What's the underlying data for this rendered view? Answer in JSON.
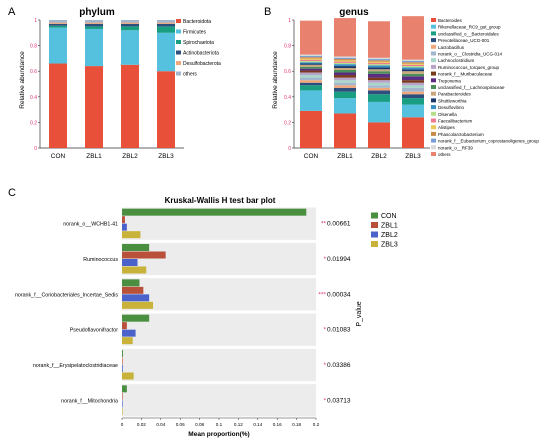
{
  "chart_data": [
    {
      "type": "bar",
      "stacked": true,
      "panel_label": "A",
      "title": "phylum",
      "ylabel": "Relative abundance",
      "ylim": [
        0,
        1
      ],
      "yticks": [
        0,
        0.2,
        0.4,
        0.6,
        0.8,
        1
      ],
      "categories": [
        "CON",
        "ZBL1",
        "ZBL2",
        "ZBL3"
      ],
      "legend_position": "right",
      "series": [
        {
          "name": "Bacteroidota",
          "color": "#e8503a",
          "values": [
            0.66,
            0.64,
            0.65,
            0.6
          ]
        },
        {
          "name": "Firmicutes",
          "color": "#56c1de",
          "values": [
            0.28,
            0.29,
            0.27,
            0.3
          ]
        },
        {
          "name": "Spirochaetota",
          "color": "#1a9e82",
          "values": [
            0.015,
            0.02,
            0.03,
            0.05
          ]
        },
        {
          "name": "Actinobacteriota",
          "color": "#2e4f7e",
          "values": [
            0.015,
            0.02,
            0.02,
            0.02
          ]
        },
        {
          "name": "Desulfobacterota",
          "color": "#f0a87a",
          "values": [
            0.01,
            0.01,
            0.01,
            0.01
          ]
        },
        {
          "name": "others",
          "color": "#a2b7ce",
          "values": [
            0.02,
            0.02,
            0.02,
            0.02
          ]
        }
      ]
    },
    {
      "type": "bar",
      "stacked": true,
      "panel_label": "B",
      "title": "genus",
      "ylabel": "Relative abundance",
      "ylim": [
        0,
        1
      ],
      "yticks": [
        0,
        0.2,
        0.4,
        0.6,
        0.8,
        1
      ],
      "categories": [
        "CON",
        "ZBL1",
        "ZBL2",
        "ZBL3"
      ],
      "legend_position": "right",
      "series": [
        {
          "name": "Bacteroides",
          "color": "#e8503a",
          "values": [
            0.29,
            0.27,
            0.2,
            0.24
          ]
        },
        {
          "name": "Rikenellaceae_RC9_gut_group",
          "color": "#56c1de",
          "values": [
            0.16,
            0.12,
            0.16,
            0.1
          ]
        },
        {
          "name": "unclassified_o__Bacteroidales",
          "color": "#1a9e82",
          "values": [
            0.04,
            0.05,
            0.06,
            0.05
          ]
        },
        {
          "name": "Prevotellaceae_UCG-001",
          "color": "#2e4f7e",
          "values": [
            0.02,
            0.03,
            0.03,
            0.03
          ]
        },
        {
          "name": "Lactobacillus",
          "color": "#f0a87a",
          "values": [
            0.02,
            0.02,
            0.02,
            0.02
          ]
        },
        {
          "name": "norank_o__Clostridia_UCG-014",
          "color": "#a2b7ce",
          "values": [
            0.02,
            0.02,
            0.02,
            0.03
          ]
        },
        {
          "name": "Lachnoclostridium",
          "color": "#a8d6cb",
          "values": [
            0.02,
            0.02,
            0.02,
            0.02
          ]
        },
        {
          "name": "Ruminococcus_torques_group",
          "color": "#b8a3c9",
          "values": [
            0.02,
            0.02,
            0.02,
            0.02
          ]
        },
        {
          "name": "norank_f__Muribaculaceae",
          "color": "#7a3b1c",
          "values": [
            0.015,
            0.02,
            0.02,
            0.02
          ]
        },
        {
          "name": "Treponema",
          "color": "#5a2d82",
          "values": [
            0.015,
            0.02,
            0.03,
            0.03
          ]
        },
        {
          "name": "unclassified_f__Lachnospiraceae",
          "color": "#4a8f5a",
          "values": [
            0.015,
            0.02,
            0.02,
            0.02
          ]
        },
        {
          "name": "Parabacteroides",
          "color": "#c9a77a",
          "values": [
            0.015,
            0.015,
            0.015,
            0.02
          ]
        },
        {
          "name": "Shuttleworthia",
          "color": "#1b3a6b",
          "values": [
            0.01,
            0.015,
            0.015,
            0.015
          ]
        },
        {
          "name": "Desulfovibrio",
          "color": "#3a8fc7",
          "values": [
            0.01,
            0.015,
            0.015,
            0.015
          ]
        },
        {
          "name": "Olsenella",
          "color": "#b5df8a",
          "values": [
            0.01,
            0.01,
            0.01,
            0.01
          ]
        },
        {
          "name": "Faecalibacterium",
          "color": "#f07a8f",
          "values": [
            0.01,
            0.01,
            0.01,
            0.01
          ]
        },
        {
          "name": "Alistipes",
          "color": "#e8c95a",
          "values": [
            0.01,
            0.01,
            0.01,
            0.01
          ]
        },
        {
          "name": "Phascolarctobacterium",
          "color": "#c98b4a",
          "values": [
            0.01,
            0.01,
            0.01,
            0.01
          ]
        },
        {
          "name": "norank_f__Eubacterium_coprostanoligenes_group",
          "color": "#7a9fd6",
          "values": [
            0.01,
            0.01,
            0.01,
            0.01
          ]
        },
        {
          "name": "norank_o__RF39",
          "color": "#d9d9d9",
          "values": [
            0.01,
            0.01,
            0.01,
            0.01
          ]
        },
        {
          "name": "others",
          "color": "#e8826e",
          "values": [
            0.265,
            0.3,
            0.285,
            0.34
          ]
        }
      ]
    },
    {
      "type": "bar",
      "orientation": "horizontal",
      "panel_label": "C",
      "title": "Kruskal-Wallis H test bar plot",
      "xlabel": "Mean proportion(%)",
      "ylabel_right": "P_value",
      "xlim": [
        0,
        0.2
      ],
      "xticks": [
        "0",
        "0.02",
        "0.04",
        "0.06",
        "0.08",
        "0.1",
        "0.12",
        "0.14",
        "0.16",
        "0.18",
        "0.2"
      ],
      "categories": [
        "norank_o__WCHB1-41",
        "Ruminococcus",
        "norank_f__Coriobacteriales_Incertae_Sedis",
        "Pseudoflavonifractor",
        "norank_f__Erysipelatoclostridiaceae",
        "norank_f__Mitochondria"
      ],
      "pvalues": [
        "0.00661",
        "0.01994",
        "0.00034",
        "0.01083",
        "0.03386",
        "0.03713"
      ],
      "significance": [
        "**",
        "*",
        "***",
        "*",
        "*",
        "*"
      ],
      "legend_position": "top-right",
      "series": [
        {
          "name": "CON",
          "color": "#4a8f3f",
          "values": [
            0.19,
            0.028,
            0.018,
            0.028,
            0.001,
            0.005
          ]
        },
        {
          "name": "ZBL1",
          "color": "#b8503a",
          "values": [
            0.003,
            0.045,
            0.022,
            0.005,
            0.0005,
            0.0002
          ]
        },
        {
          "name": "ZBL2",
          "color": "#4a62c9",
          "values": [
            0.005,
            0.016,
            0.028,
            0.014,
            0.0008,
            0.0002
          ]
        },
        {
          "name": "ZBL3",
          "color": "#c9b23a",
          "values": [
            0.019,
            0.025,
            0.032,
            0.011,
            0.012,
            0.0005
          ]
        }
      ]
    }
  ]
}
